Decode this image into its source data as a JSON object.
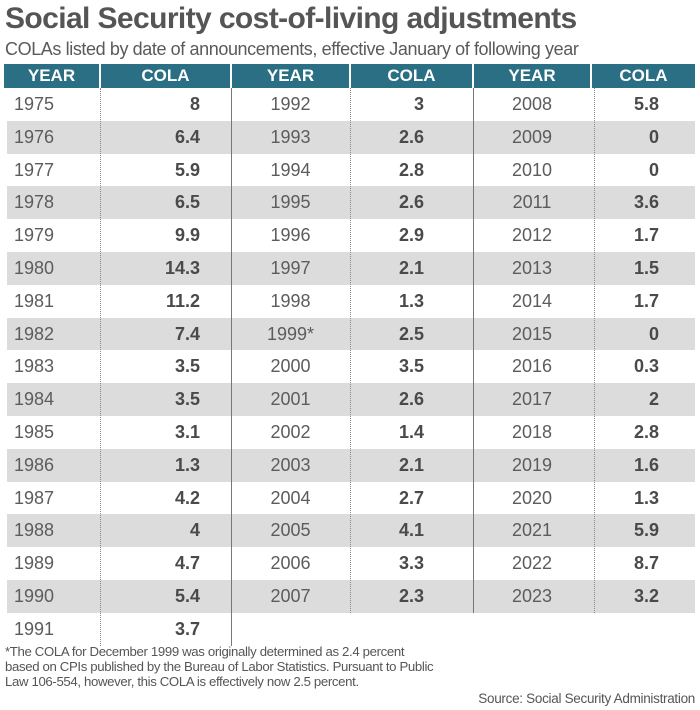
{
  "chart_data": {
    "type": "table",
    "title": "Social Security cost-of-living adjustments",
    "subtitle": "COLAs listed by date of announcements, effective January of following year",
    "columns": [
      "YEAR",
      "COLA",
      "YEAR",
      "COLA",
      "YEAR",
      "COLA"
    ],
    "sections": [
      {
        "rows": [
          {
            "year": "1975",
            "cola": "8"
          },
          {
            "year": "1976",
            "cola": "6.4"
          },
          {
            "year": "1977",
            "cola": "5.9"
          },
          {
            "year": "1978",
            "cola": "6.5"
          },
          {
            "year": "1979",
            "cola": "9.9"
          },
          {
            "year": "1980",
            "cola": "14.3"
          },
          {
            "year": "1981",
            "cola": "11.2"
          },
          {
            "year": "1982",
            "cola": "7.4"
          },
          {
            "year": "1983",
            "cola": "3.5"
          },
          {
            "year": "1984",
            "cola": "3.5"
          },
          {
            "year": "1985",
            "cola": "3.1"
          },
          {
            "year": "1986",
            "cola": "1.3"
          },
          {
            "year": "1987",
            "cola": "4.2"
          },
          {
            "year": "1988",
            "cola": "4"
          },
          {
            "year": "1989",
            "cola": "4.7"
          },
          {
            "year": "1990",
            "cola": "5.4"
          },
          {
            "year": "1991",
            "cola": "3.7"
          }
        ]
      },
      {
        "rows": [
          {
            "year": "1992",
            "cola": "3"
          },
          {
            "year": "1993",
            "cola": "2.6"
          },
          {
            "year": "1994",
            "cola": "2.8"
          },
          {
            "year": "1995",
            "cola": "2.6"
          },
          {
            "year": "1996",
            "cola": "2.9"
          },
          {
            "year": "1997",
            "cola": "2.1"
          },
          {
            "year": "1998",
            "cola": "1.3"
          },
          {
            "year": "1999*",
            "cola": "2.5"
          },
          {
            "year": "2000",
            "cola": "3.5"
          },
          {
            "year": "2001",
            "cola": "2.6"
          },
          {
            "year": "2002",
            "cola": "1.4"
          },
          {
            "year": "2003",
            "cola": "2.1"
          },
          {
            "year": "2004",
            "cola": "2.7"
          },
          {
            "year": "2005",
            "cola": "4.1"
          },
          {
            "year": "2006",
            "cola": "3.3"
          },
          {
            "year": "2007",
            "cola": "2.3"
          }
        ]
      },
      {
        "rows": [
          {
            "year": "2008",
            "cola": "5.8"
          },
          {
            "year": "2009",
            "cola": "0"
          },
          {
            "year": "2010",
            "cola": "0"
          },
          {
            "year": "2011",
            "cola": "3.6"
          },
          {
            "year": "2012",
            "cola": "1.7"
          },
          {
            "year": "2013",
            "cola": "1.5"
          },
          {
            "year": "2014",
            "cola": "1.7"
          },
          {
            "year": "2015",
            "cola": "0"
          },
          {
            "year": "2016",
            "cola": "0.3"
          },
          {
            "year": "2017",
            "cola": "2"
          },
          {
            "year": "2018",
            "cola": "2.8"
          },
          {
            "year": "2019",
            "cola": "1.6"
          },
          {
            "year": "2020",
            "cola": "1.3"
          },
          {
            "year": "2021",
            "cola": "5.9"
          },
          {
            "year": "2022",
            "cola": "8.7"
          },
          {
            "year": "2023",
            "cola": "3.2"
          }
        ]
      }
    ],
    "footnote": "*The COLA for December 1999 was originally determined as 2.4 percent based on CPIs published by the Bureau of Labor Statistics. Pursuant to Public Law 106-554, however, this COLA is effectively now 2.5 percent.",
    "source": "Source: Social Security Administration"
  },
  "colors": {
    "header": "#2b6f84",
    "stripe": "#dcdcdc",
    "text": "#555555"
  }
}
